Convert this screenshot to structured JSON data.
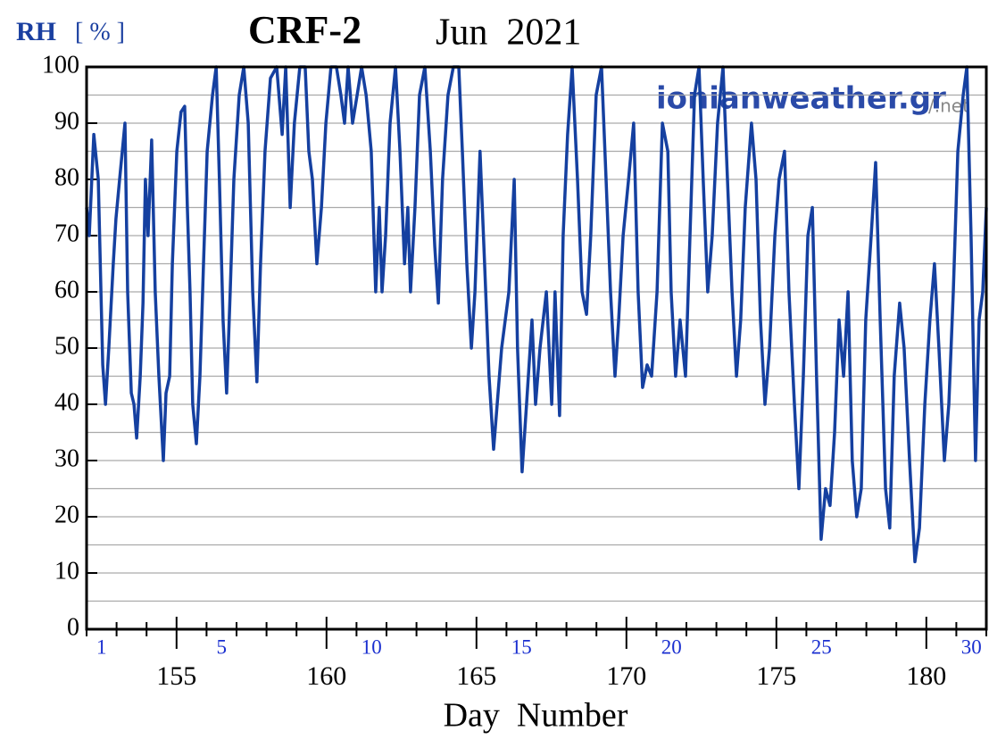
{
  "chart_data": {
    "type": "line",
    "title": "CRF-2",
    "subtitle": "Jun  2021",
    "ylabel": "RH",
    "ylabel_unit": "[ % ]",
    "xlabel": "Day  Number",
    "watermark": "ionianweather.gr",
    "watermark_suffix": "/.net",
    "xlim": [
      152,
      182
    ],
    "ylim": [
      0,
      100
    ],
    "xticks": [
      155,
      160,
      165,
      170,
      175,
      180
    ],
    "minor_xticks": [
      152,
      153,
      154,
      156,
      157,
      158,
      159,
      161,
      162,
      163,
      164,
      166,
      167,
      168,
      169,
      171,
      172,
      173,
      174,
      176,
      177,
      178,
      179,
      181,
      182
    ],
    "yticks": [
      0,
      10,
      20,
      30,
      40,
      50,
      60,
      70,
      80,
      90,
      100
    ],
    "minor_yticks": [
      5,
      15,
      25,
      35,
      45,
      55,
      65,
      75,
      85,
      95
    ],
    "day_labels": [
      {
        "value": 152.5,
        "label": "1"
      },
      {
        "value": 156.5,
        "label": "5"
      },
      {
        "value": 161.5,
        "label": "10"
      },
      {
        "value": 166.5,
        "label": "15"
      },
      {
        "value": 171.5,
        "label": "20"
      },
      {
        "value": 176.5,
        "label": "25"
      },
      {
        "value": 181.5,
        "label": "30"
      }
    ],
    "grid": true,
    "series": [
      {
        "name": "RH",
        "color": "#1540a0",
        "x": [
          152.0,
          152.09,
          152.24,
          152.39,
          152.48,
          152.54,
          152.63,
          152.74,
          152.89,
          152.98,
          153.1,
          153.28,
          153.37,
          153.49,
          153.58,
          153.67,
          153.79,
          153.88,
          153.96,
          154.05,
          154.17,
          154.29,
          154.41,
          154.56,
          154.65,
          154.77,
          154.86,
          155.01,
          155.15,
          155.27,
          155.36,
          155.45,
          155.54,
          155.66,
          155.78,
          155.9,
          156.02,
          156.2,
          156.32,
          156.43,
          156.55,
          156.67,
          156.79,
          156.91,
          157.09,
          157.24,
          157.39,
          157.54,
          157.68,
          157.8,
          157.95,
          158.13,
          158.34,
          158.52,
          158.64,
          158.79,
          158.93,
          159.11,
          159.29,
          159.41,
          159.53,
          159.68,
          159.83,
          159.98,
          160.15,
          160.33,
          160.48,
          160.6,
          160.72,
          160.87,
          161.02,
          161.17,
          161.32,
          161.49,
          161.64,
          161.76,
          161.85,
          161.97,
          162.12,
          162.3,
          162.45,
          162.6,
          162.71,
          162.8,
          162.95,
          163.1,
          163.28,
          163.46,
          163.61,
          163.73,
          163.87,
          164.05,
          164.23,
          164.41,
          164.53,
          164.68,
          164.83,
          164.95,
          165.12,
          165.27,
          165.42,
          165.57,
          165.69,
          165.84,
          166.08,
          166.26,
          166.37,
          166.52,
          166.67,
          166.85,
          166.97,
          167.12,
          167.33,
          167.51,
          167.62,
          167.77,
          167.89,
          168.04,
          168.19,
          168.37,
          168.52,
          168.67,
          168.81,
          168.99,
          169.17,
          169.32,
          169.47,
          169.62,
          169.74,
          169.89,
          170.07,
          170.24,
          170.39,
          170.54,
          170.69,
          170.84,
          171.02,
          171.2,
          171.38,
          171.49,
          171.64,
          171.79,
          171.97,
          172.12,
          172.27,
          172.42,
          172.56,
          172.71,
          172.86,
          173.04,
          173.22,
          173.37,
          173.52,
          173.67,
          173.81,
          173.96,
          174.17,
          174.32,
          174.47,
          174.62,
          174.77,
          174.95,
          175.09,
          175.27,
          175.42,
          175.6,
          175.75,
          175.9,
          176.05,
          176.2,
          176.34,
          176.49,
          176.64,
          176.79,
          176.94,
          177.09,
          177.24,
          177.39,
          177.53,
          177.68,
          177.83,
          177.98,
          178.16,
          178.31,
          178.46,
          178.64,
          178.78,
          178.93,
          179.11,
          179.26,
          179.44,
          179.62,
          179.77,
          179.95,
          180.12,
          180.27,
          180.42,
          180.6,
          180.75,
          180.9,
          181.05,
          181.23,
          181.35,
          181.49,
          181.64,
          181.76,
          181.88,
          182.0
        ],
        "values": [
          75,
          70,
          88,
          80,
          60,
          47,
          40,
          50,
          65,
          73,
          80,
          90,
          60,
          42,
          40,
          34,
          45,
          58,
          80,
          70,
          87,
          60,
          45,
          30,
          42,
          45,
          65,
          85,
          92,
          93,
          75,
          60,
          40,
          33,
          45,
          65,
          85,
          95,
          100,
          80,
          55,
          42,
          60,
          80,
          95,
          100,
          90,
          60,
          44,
          65,
          85,
          98,
          100,
          88,
          100,
          75,
          90,
          100,
          100,
          85,
          80,
          65,
          75,
          90,
          100,
          100,
          95,
          90,
          100,
          90,
          95,
          100,
          95,
          85,
          60,
          75,
          60,
          70,
          90,
          100,
          85,
          65,
          75,
          60,
          75,
          95,
          100,
          85,
          68,
          58,
          80,
          95,
          100,
          100,
          85,
          65,
          50,
          60,
          85,
          65,
          45,
          32,
          40,
          50,
          60,
          80,
          50,
          28,
          40,
          55,
          40,
          50,
          60,
          40,
          60,
          38,
          70,
          88,
          100,
          80,
          60,
          56,
          70,
          95,
          100,
          80,
          60,
          45,
          55,
          70,
          80,
          90,
          60,
          43,
          47,
          45,
          60,
          90,
          85,
          60,
          45,
          55,
          45,
          70,
          95,
          100,
          80,
          60,
          70,
          90,
          100,
          80,
          60,
          45,
          55,
          75,
          90,
          80,
          55,
          40,
          50,
          70,
          80,
          85,
          60,
          40,
          25,
          45,
          70,
          75,
          45,
          16,
          25,
          22,
          35,
          55,
          45,
          60,
          30,
          20,
          25,
          55,
          70,
          83,
          55,
          25,
          18,
          45,
          58,
          50,
          30,
          12,
          18,
          40,
          55,
          65,
          50,
          30,
          40,
          60,
          85,
          95,
          100,
          70,
          30,
          55,
          60,
          75
        ]
      }
    ]
  }
}
